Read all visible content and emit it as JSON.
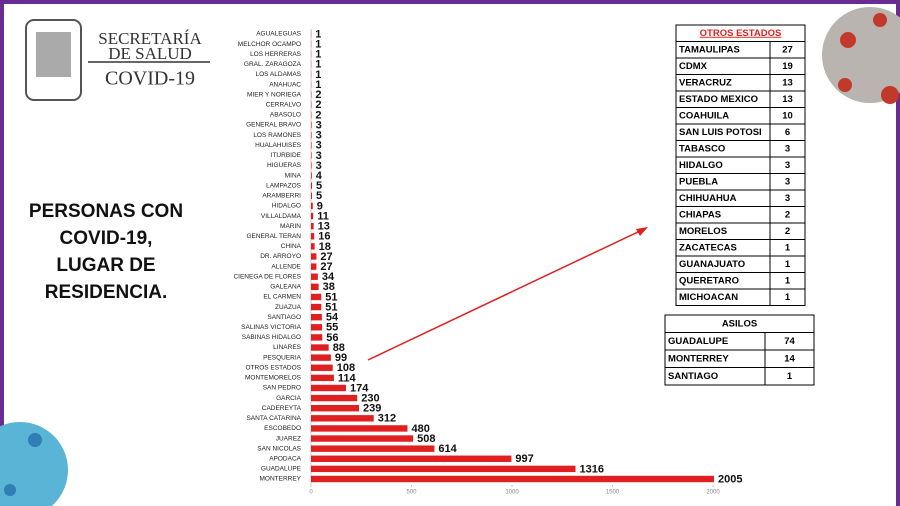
{
  "header": {
    "org_line1": "SECRETARÍA",
    "org_line2": "DE SALUD",
    "subtitle": "COVID-19"
  },
  "caption": [
    "PERSONAS CON",
    "COVID-19,",
    "LUGAR DE",
    "RESIDENCIA."
  ],
  "chart_data": {
    "type": "hbar",
    "color": "#e02020",
    "categories": [
      "AGUALEGUAS",
      "MELCHOR OCAMPO",
      "LOS HERRERAS",
      "GRAL. ZARAGOZA",
      "LOS ALDAMAS",
      "ANAHUAC",
      "MIER Y NORIEGA",
      "CERRALVO",
      "ABASOLO",
      "GENERAL BRAVO",
      "LOS RAMONES",
      "HUALAHUISES",
      "ITURBIDE",
      "HIGUERAS",
      "MINA",
      "LAMPAZOS",
      "ARAMBERRI",
      "HIDALGO",
      "VILLALDAMA",
      "MARIN",
      "GENERAL TERAN",
      "CHINA",
      "DR. ARROYO",
      "ALLENDE",
      "CIENEGA DE FLORES",
      "GALEANA",
      "EL CARMEN",
      "ZUAZUA",
      "SANTIAGO",
      "SALINAS VICTORIA",
      "SABINAS HIDALGO",
      "LINARES",
      "PESQUERIA",
      "OTROS ESTADOS",
      "MONTEMORELOS",
      "SAN PEDRO",
      "GARCIA",
      "CADEREYTA",
      "SANTA CATARINA",
      "ESCOBEDO",
      "JUAREZ",
      "SAN NICOLAS",
      "APODACA",
      "GUADALUPE",
      "MONTERREY"
    ],
    "values": [
      1,
      1,
      1,
      1,
      1,
      1,
      2,
      2,
      2,
      3,
      3,
      3,
      3,
      3,
      4,
      5,
      5,
      9,
      11,
      13,
      16,
      18,
      27,
      27,
      34,
      38,
      51,
      51,
      54,
      55,
      56,
      88,
      99,
      108,
      114,
      174,
      230,
      239,
      312,
      480,
      508,
      614,
      997,
      1316,
      2005
    ],
    "xlim": [
      0,
      2000
    ],
    "xticks": [
      0,
      500,
      1000,
      1500,
      2000
    ]
  },
  "otros_estados": {
    "title": "OTROS ESTADOS",
    "rows": [
      [
        "TAMAULIPAS",
        "27"
      ],
      [
        "CDMX",
        "19"
      ],
      [
        "VERACRUZ",
        "13"
      ],
      [
        "ESTADO MEXICO",
        "13"
      ],
      [
        "COAHUILA",
        "10"
      ],
      [
        "SAN LUIS POTOSI",
        "6"
      ],
      [
        "TABASCO",
        "3"
      ],
      [
        "HIDALGO",
        "3"
      ],
      [
        "PUEBLA",
        "3"
      ],
      [
        "CHIHUAHUA",
        "3"
      ],
      [
        "CHIAPAS",
        "2"
      ],
      [
        "MORELOS",
        "2"
      ],
      [
        "ZACATECAS",
        "1"
      ],
      [
        "GUANAJUATO",
        "1"
      ],
      [
        "QUERETARO",
        "1"
      ],
      [
        "MICHOACAN",
        "1"
      ]
    ]
  },
  "asilos": {
    "title": "ASILOS",
    "rows": [
      [
        "GUADALUPE",
        "74"
      ],
      [
        "MONTERREY",
        "14"
      ],
      [
        "SANTIAGO",
        "1"
      ]
    ]
  }
}
